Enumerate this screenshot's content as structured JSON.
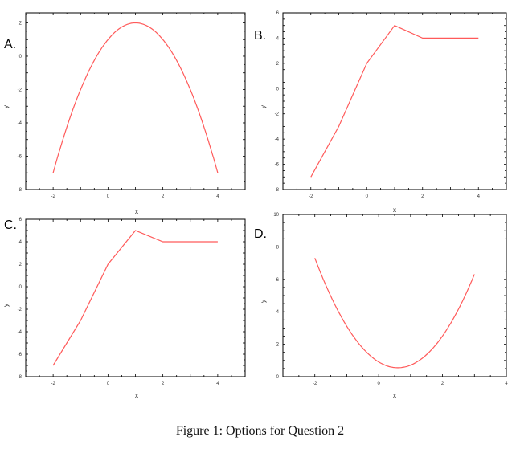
{
  "caption": "Figure 1: Options for Question 2",
  "colors": {
    "line": "#ff5a5a",
    "axis": "#000000",
    "tick_text": "#333333"
  },
  "chart_data": [
    {
      "type": "line",
      "panel_label": "A.",
      "xlabel": "x",
      "ylabel": "y",
      "xlim": [
        -3,
        5
      ],
      "ylim": [
        -8,
        2.6
      ],
      "xticks": [
        -2,
        0,
        2,
        4
      ],
      "yticks": [
        -8,
        -6,
        -4,
        -2,
        0,
        2
      ],
      "series": [
        {
          "function": "-(x-1)^2+2",
          "x": [
            -2,
            -1.5,
            -1,
            -0.5,
            0,
            0.5,
            1,
            1.5,
            2,
            2.5,
            3,
            3.5,
            4
          ],
          "y": [
            -7,
            -4.25,
            -2,
            -0.25,
            1,
            1.75,
            2,
            1.75,
            1,
            -0.25,
            -2,
            -4.25,
            -7
          ]
        }
      ]
    },
    {
      "type": "line",
      "panel_label": "B.",
      "xlabel": "x",
      "ylabel": "y",
      "xlim": [
        -3,
        5
      ],
      "ylim": [
        -8,
        6
      ],
      "xticks": [
        -2,
        0,
        2,
        4
      ],
      "yticks": [
        -8,
        -6,
        -4,
        -2,
        0,
        2,
        4,
        6
      ],
      "series": [
        {
          "x": [
            -2,
            -1,
            0,
            1,
            2,
            3,
            4
          ],
          "y": [
            -7,
            -3,
            2,
            5,
            4,
            4,
            4
          ]
        }
      ]
    },
    {
      "type": "line",
      "panel_label": "C.",
      "xlabel": "x",
      "ylabel": "y",
      "xlim": [
        -3,
        5
      ],
      "ylim": [
        -8,
        6
      ],
      "xticks": [
        -2,
        0,
        2,
        4
      ],
      "yticks": [
        -8,
        -6,
        -4,
        -2,
        0,
        2,
        4,
        6
      ],
      "series": [
        {
          "x": [
            -2,
            -1,
            0,
            1,
            2,
            3,
            4
          ],
          "y": [
            -7,
            -3,
            2,
            5,
            4,
            4,
            4
          ]
        }
      ]
    },
    {
      "type": "line",
      "panel_label": "D.",
      "xlabel": "x",
      "ylabel": "y",
      "xlim": [
        -3,
        4
      ],
      "ylim": [
        0,
        10
      ],
      "xticks": [
        -2,
        0,
        2,
        4
      ],
      "yticks": [
        0,
        2,
        4,
        6,
        8,
        10
      ],
      "series": [
        {
          "function": "(x-0.6)^2+0.55",
          "x": [
            -2,
            -1.5,
            -1,
            -0.5,
            0,
            0.5,
            0.6,
            1,
            1.5,
            2,
            2.5,
            3
          ],
          "y": [
            7.31,
            4.96,
            3.11,
            1.76,
            0.91,
            0.56,
            0.55,
            0.71,
            1.36,
            2.51,
            4.16,
            6.31
          ]
        }
      ]
    }
  ]
}
